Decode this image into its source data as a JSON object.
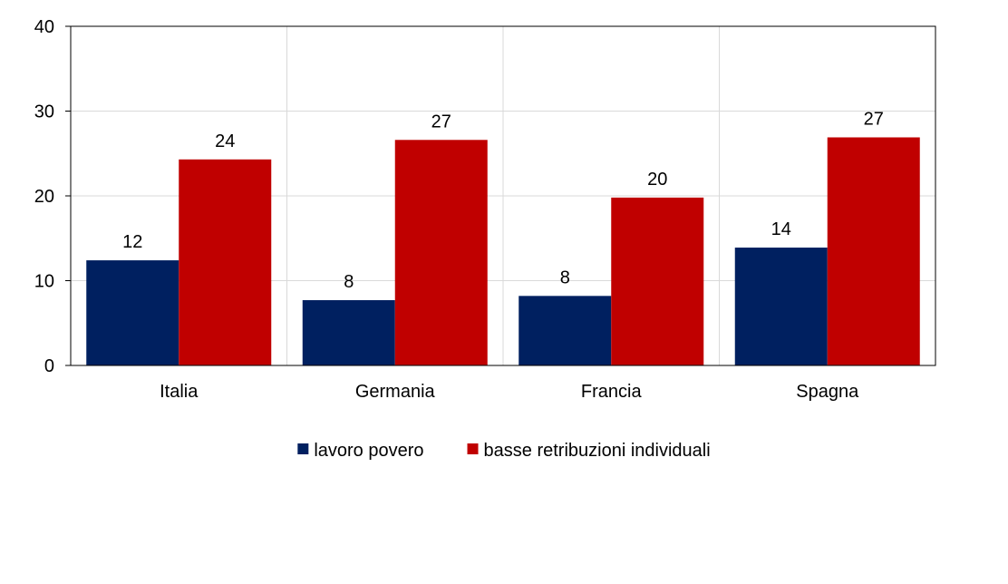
{
  "chart_data": {
    "type": "bar",
    "title": "",
    "xlabel": "",
    "ylabel": "",
    "categories": [
      "Italia",
      "Germania",
      "Francia",
      "Spagna"
    ],
    "ylim": [
      0,
      40
    ],
    "yticks": [
      0,
      10,
      20,
      30,
      40
    ],
    "grid": true,
    "legend_position": "bottom",
    "series": [
      {
        "name": "lavoro povero",
        "color": "#002060",
        "values": [
          12.4,
          7.7,
          8.2,
          13.9
        ],
        "labels": [
          "12",
          "8",
          "8",
          "14"
        ]
      },
      {
        "name": "basse retribuzioni individuali",
        "color": "#C00000",
        "values": [
          24.3,
          26.6,
          19.8,
          26.9
        ],
        "labels": [
          "24",
          "27",
          "20",
          "27"
        ]
      }
    ]
  }
}
